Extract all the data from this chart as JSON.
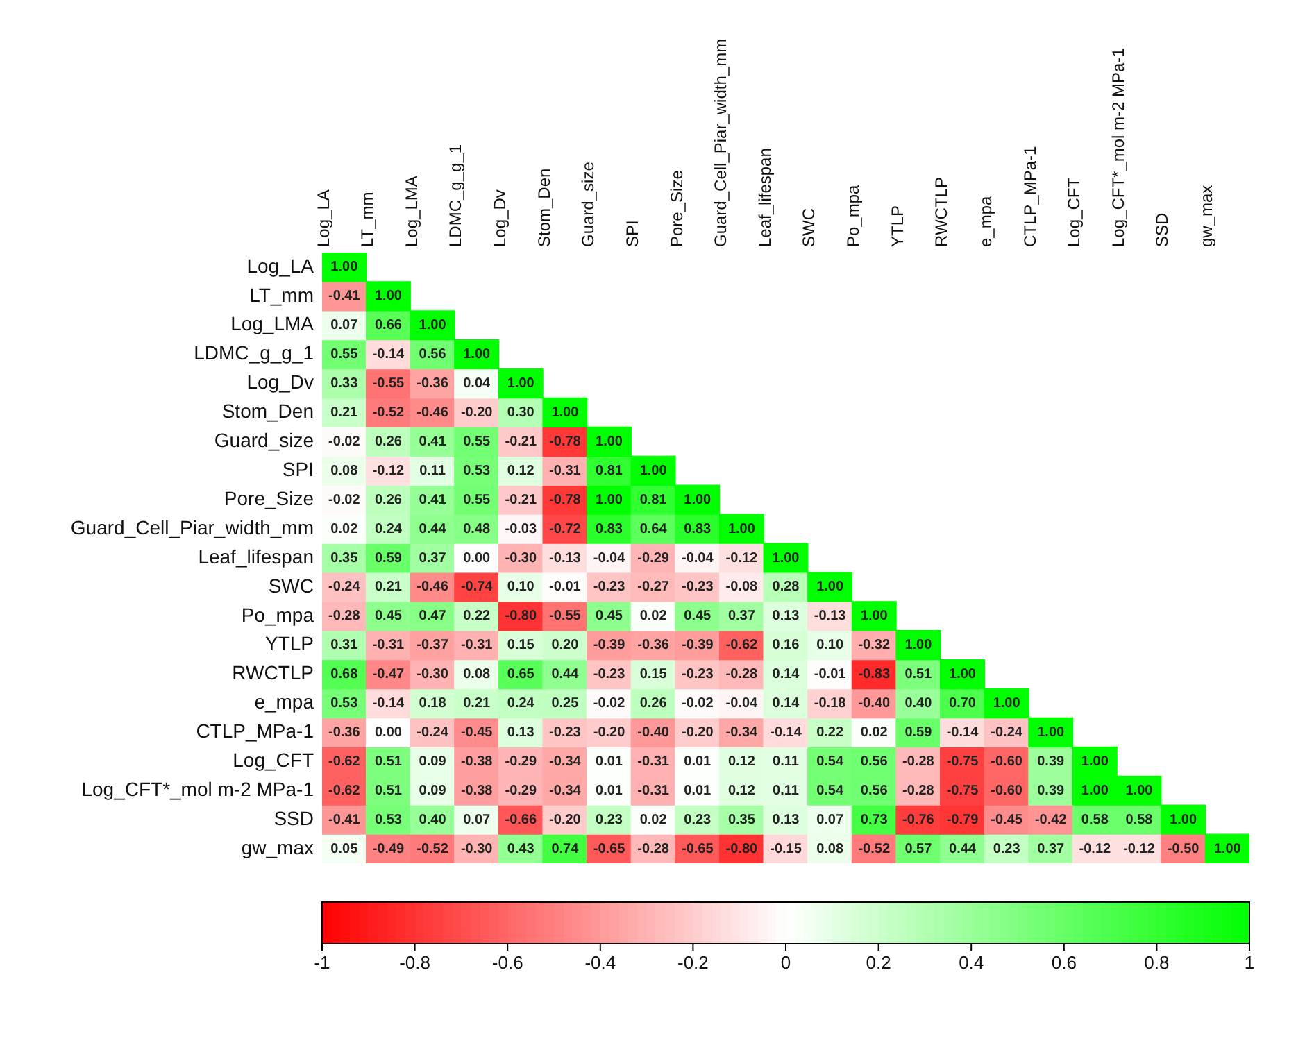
{
  "chart_data": {
    "type": "heatmap",
    "categories": [
      "Log_LA",
      "LT_mm",
      "Log_LMA",
      "LDMC_g_g_1",
      "Log_Dv",
      "Stom_Den",
      "Guard_size",
      "SPI",
      "Pore_Size",
      "Guard_Cell_Piar_width_mm",
      "Leaf_lifespan",
      "SWC",
      "Po_mpa",
      "YTLP",
      "RWCTLP",
      "e_mpa",
      "CTLP_MPa-1",
      "Log_CFT",
      "Log_CFT*_mol m-2 MPa-1",
      "SSD",
      "gw_max"
    ],
    "y_categories": [
      "Log_LA",
      "LT_mm",
      "Log_LMA",
      "LDMC_g_g_1",
      "Log_Dv",
      "Stom_Den",
      "Guard_size",
      "SPI",
      "Pore_Size",
      "Guard_Cell_Piar_width_mm",
      "Leaf_lifespan",
      "SWC",
      "Po_mpa",
      "YTLP",
      "RWCTLP",
      "e_mpa",
      "CTLP_MPa-1",
      "Log_CFT",
      "Log_CFT*_mol m-2 MPa-1",
      "SSD",
      "gw_max"
    ],
    "cells": [
      [
        1.0,
        null,
        null,
        null,
        null,
        null,
        null,
        null,
        null,
        null,
        null,
        null,
        null,
        null,
        null,
        null,
        null,
        null,
        null,
        null,
        null
      ],
      [
        -0.41,
        1.0,
        null,
        null,
        null,
        null,
        null,
        null,
        null,
        null,
        null,
        null,
        null,
        null,
        null,
        null,
        null,
        null,
        null,
        null,
        null
      ],
      [
        0.07,
        0.66,
        1.0,
        null,
        null,
        null,
        null,
        null,
        null,
        null,
        null,
        null,
        null,
        null,
        null,
        null,
        null,
        null,
        null,
        null,
        null
      ],
      [
        0.55,
        -0.14,
        0.56,
        1.0,
        null,
        null,
        null,
        null,
        null,
        null,
        null,
        null,
        null,
        null,
        null,
        null,
        null,
        null,
        null,
        null,
        null
      ],
      [
        0.33,
        -0.55,
        -0.36,
        0.04,
        1.0,
        null,
        null,
        null,
        null,
        null,
        null,
        null,
        null,
        null,
        null,
        null,
        null,
        null,
        null,
        null,
        null
      ],
      [
        0.21,
        -0.52,
        -0.46,
        -0.2,
        0.3,
        1.0,
        null,
        null,
        null,
        null,
        null,
        null,
        null,
        null,
        null,
        null,
        null,
        null,
        null,
        null,
        null
      ],
      [
        -0.02,
        0.26,
        0.41,
        0.55,
        -0.21,
        -0.78,
        1.0,
        null,
        null,
        null,
        null,
        null,
        null,
        null,
        null,
        null,
        null,
        null,
        null,
        null,
        null
      ],
      [
        0.08,
        -0.12,
        0.11,
        0.53,
        0.12,
        -0.31,
        0.81,
        1.0,
        null,
        null,
        null,
        null,
        null,
        null,
        null,
        null,
        null,
        null,
        null,
        null,
        null
      ],
      [
        -0.02,
        0.26,
        0.41,
        0.55,
        -0.21,
        -0.78,
        1.0,
        0.81,
        1.0,
        null,
        null,
        null,
        null,
        null,
        null,
        null,
        null,
        null,
        null,
        null,
        null
      ],
      [
        0.02,
        0.24,
        0.44,
        0.48,
        -0.03,
        -0.72,
        0.83,
        0.64,
        0.83,
        1.0,
        null,
        null,
        null,
        null,
        null,
        null,
        null,
        null,
        null,
        null,
        null
      ],
      [
        0.35,
        0.59,
        0.37,
        0.0,
        -0.3,
        -0.13,
        -0.04,
        -0.29,
        -0.04,
        -0.12,
        1.0,
        null,
        null,
        null,
        null,
        null,
        null,
        null,
        null,
        null,
        null
      ],
      [
        -0.24,
        0.21,
        -0.46,
        -0.74,
        0.1,
        -0.01,
        -0.23,
        -0.27,
        -0.23,
        -0.08,
        0.28,
        1.0,
        null,
        null,
        null,
        null,
        null,
        null,
        null,
        null,
        null
      ],
      [
        -0.28,
        0.45,
        0.47,
        0.22,
        -0.8,
        -0.55,
        0.45,
        0.02,
        0.45,
        0.37,
        0.13,
        -0.13,
        1.0,
        null,
        null,
        null,
        null,
        null,
        null,
        null,
        null
      ],
      [
        0.31,
        -0.31,
        -0.37,
        -0.31,
        0.15,
        0.2,
        -0.39,
        -0.36,
        -0.39,
        -0.62,
        0.16,
        0.1,
        -0.32,
        1.0,
        null,
        null,
        null,
        null,
        null,
        null,
        null
      ],
      [
        0.68,
        -0.47,
        -0.3,
        0.08,
        0.65,
        0.44,
        -0.23,
        0.15,
        -0.23,
        -0.28,
        0.14,
        -0.01,
        -0.83,
        0.51,
        1.0,
        null,
        null,
        null,
        null,
        null,
        null
      ],
      [
        0.53,
        -0.14,
        0.18,
        0.21,
        0.24,
        0.25,
        -0.02,
        0.26,
        -0.02,
        -0.04,
        0.14,
        -0.18,
        -0.4,
        0.4,
        0.7,
        1.0,
        null,
        null,
        null,
        null,
        null
      ],
      [
        -0.36,
        0.0,
        -0.24,
        -0.45,
        0.13,
        -0.23,
        -0.2,
        -0.4,
        -0.2,
        -0.34,
        -0.14,
        0.22,
        0.02,
        0.59,
        -0.14,
        -0.24,
        1.0,
        null,
        null,
        null,
        null
      ],
      [
        -0.62,
        0.51,
        0.09,
        -0.38,
        -0.29,
        -0.34,
        0.01,
        -0.31,
        0.01,
        0.12,
        0.11,
        0.54,
        0.56,
        -0.28,
        -0.75,
        -0.6,
        0.39,
        1.0,
        null,
        null,
        null
      ],
      [
        -0.62,
        0.51,
        0.09,
        -0.38,
        -0.29,
        -0.34,
        0.01,
        -0.31,
        0.01,
        0.12,
        0.11,
        0.54,
        0.56,
        -0.28,
        -0.75,
        -0.6,
        0.39,
        1.0,
        1.0,
        null,
        null
      ],
      [
        -0.41,
        0.53,
        0.4,
        0.07,
        -0.66,
        -0.2,
        0.23,
        0.02,
        0.23,
        0.35,
        0.13,
        0.07,
        0.73,
        -0.76,
        -0.79,
        -0.45,
        -0.42,
        0.58,
        0.58,
        1.0,
        null
      ],
      [
        0.05,
        -0.49,
        -0.52,
        -0.3,
        0.43,
        0.74,
        -0.65,
        -0.28,
        -0.65,
        -0.8,
        -0.15,
        0.08,
        -0.52,
        0.57,
        0.44,
        0.23,
        0.37,
        -0.12,
        -0.12,
        -0.5,
        1.0
      ]
    ],
    "cell_labels": [
      [
        "1.00",
        null,
        null,
        null,
        null,
        null,
        null,
        null,
        null,
        null,
        null,
        null,
        null,
        null,
        null,
        null,
        null,
        null,
        null,
        null,
        null
      ],
      [
        "-0.41",
        "1.00",
        null,
        null,
        null,
        null,
        null,
        null,
        null,
        null,
        null,
        null,
        null,
        null,
        null,
        null,
        null,
        null,
        null,
        null,
        null
      ],
      [
        "0.07",
        "0.66",
        "1.00",
        null,
        null,
        null,
        null,
        null,
        null,
        null,
        null,
        null,
        null,
        null,
        null,
        null,
        null,
        null,
        null,
        null,
        null
      ],
      [
        "0.55",
        "-0.14",
        "0.56",
        "1.00",
        null,
        null,
        null,
        null,
        null,
        null,
        null,
        null,
        null,
        null,
        null,
        null,
        null,
        null,
        null,
        null,
        null
      ],
      [
        "0.33",
        "-0.55",
        "-0.36",
        "0.04",
        "1.00",
        null,
        null,
        null,
        null,
        null,
        null,
        null,
        null,
        null,
        null,
        null,
        null,
        null,
        null,
        null,
        null
      ],
      [
        "0.21",
        "-0.52",
        "-0.46",
        "-0.20",
        "0.30",
        "1.00",
        null,
        null,
        null,
        null,
        null,
        null,
        null,
        null,
        null,
        null,
        null,
        null,
        null,
        null,
        null
      ],
      [
        "-0.02",
        "0.26",
        "0.41",
        "0.55",
        "-0.21",
        "-0.78",
        "1.00",
        null,
        null,
        null,
        null,
        null,
        null,
        null,
        null,
        null,
        null,
        null,
        null,
        null,
        null
      ],
      [
        "0.08",
        "-0.12",
        "0.11",
        "0.53",
        "0.12",
        "-0.31",
        "0.81",
        "1.00",
        null,
        null,
        null,
        null,
        null,
        null,
        null,
        null,
        null,
        null,
        null,
        null,
        null
      ],
      [
        "-0.02",
        "0.26",
        "0.41",
        "0.55",
        "-0.21",
        "-0.78",
        "1.00",
        "0.81",
        "1.00",
        null,
        null,
        null,
        null,
        null,
        null,
        null,
        null,
        null,
        null,
        null,
        null
      ],
      [
        "0.02",
        "0.24",
        "0.44",
        "0.48",
        "-0.03",
        "-0.72",
        "0.83",
        "0.64",
        "0.83",
        "1.00",
        null,
        null,
        null,
        null,
        null,
        null,
        null,
        null,
        null,
        null,
        null
      ],
      [
        "0.35",
        "0.59",
        "0.37",
        "0.00",
        "-0.30",
        "-0.13",
        "-0.04",
        "-0.29",
        "-0.04",
        "-0.12",
        "1.00",
        null,
        null,
        null,
        null,
        null,
        null,
        null,
        null,
        null,
        null
      ],
      [
        "-0.24",
        "0.21",
        "-0.46",
        "-0.74",
        "0.10",
        "-0.01",
        "-0.23",
        "-0.27",
        "-0.23",
        "-0.08",
        "0.28",
        "1.00",
        null,
        null,
        null,
        null,
        null,
        null,
        null,
        null,
        null
      ],
      [
        "-0.28",
        "0.45",
        "0.47",
        "0.22",
        "-0.80",
        "-0.55",
        "0.45",
        "0.02",
        "0.45",
        "0.37",
        "0.13",
        "-0.13",
        "1.00",
        null,
        null,
        null,
        null,
        null,
        null,
        null,
        null
      ],
      [
        "0.31",
        "-0.31",
        "-0.37",
        "-0.31",
        "0.15",
        "0.20",
        "-0.39",
        "-0.36",
        "-0.39",
        "-0.62",
        "0.16",
        "0.10",
        "-0.32",
        "1.00",
        null,
        null,
        null,
        null,
        null,
        null,
        null
      ],
      [
        "0.68",
        "-0.47",
        "-0.30",
        "0.08",
        "0.65",
        "0.44",
        "-0.23",
        "0.15",
        "-0.23",
        "-0.28",
        "0.14",
        "-0.01",
        "-0.83",
        "0.51",
        "1.00",
        null,
        null,
        null,
        null,
        null,
        null
      ],
      [
        "0.53",
        "-0.14",
        "0.18",
        "0.21",
        "0.24",
        "0.25",
        "-0.02",
        "0.26",
        "-0.02",
        "-0.04",
        "0.14",
        "-0.18",
        "-0.40",
        "0.40",
        "0.70",
        "1.00",
        null,
        null,
        null,
        null,
        null
      ],
      [
        "-0.36",
        "0.00",
        "-0.24",
        "-0.45",
        "0.13",
        "-0.23",
        "-0.20",
        "-0.40",
        "-0.20",
        "-0.34",
        "-0.14",
        "0.22",
        "0.02",
        "0.59",
        "-0.14",
        "-0.24",
        "1.00",
        null,
        null,
        null,
        null
      ],
      [
        "-0.62",
        "0.51",
        "0.09",
        "-0.38",
        "-0.29",
        "-0.34",
        "0.01",
        "-0.31",
        "0.01",
        "0.12",
        "0.11",
        "0.54",
        "0.56",
        "-0.28",
        "-0.75",
        "-0.60",
        "0.39",
        "1.00",
        null,
        null,
        null
      ],
      [
        "-0.62",
        "0.51",
        "0.09",
        "-0.38",
        "-0.29",
        "-0.34",
        "0.01",
        "-0.31",
        "0.01",
        "0.12",
        "0.11",
        "0.54",
        "0.56",
        "-0.28",
        "-0.75",
        "-0.60",
        "0.39",
        "1.00",
        "1.00",
        null,
        null
      ],
      [
        "-0.41",
        "0.53",
        "0.40",
        "0.07",
        "-0.66",
        "-0.20",
        "0.23",
        "0.02",
        "0.23",
        "0.35",
        "0.13",
        "0.07",
        "0.73",
        "-0.76",
        "-0.79",
        "-0.45",
        "-0.42",
        "0.58",
        "0.58",
        "1.00",
        null
      ],
      [
        "0.05",
        "-0.49",
        "-0.52",
        "-0.30",
        "0.43",
        "0.74",
        "-0.65",
        "-0.28",
        "-0.65",
        "-0.80",
        "-0.15",
        "0.08",
        "-0.52",
        "0.57",
        "0.44",
        "0.23",
        "0.37",
        "-0.12",
        "-0.12",
        "-0.50",
        "1.00"
      ]
    ],
    "clim": [
      -1,
      1
    ],
    "cticks": [
      -1,
      -0.8,
      -0.6,
      -0.4,
      -0.2,
      0,
      0.2,
      0.4,
      0.6,
      0.8,
      1
    ]
  }
}
